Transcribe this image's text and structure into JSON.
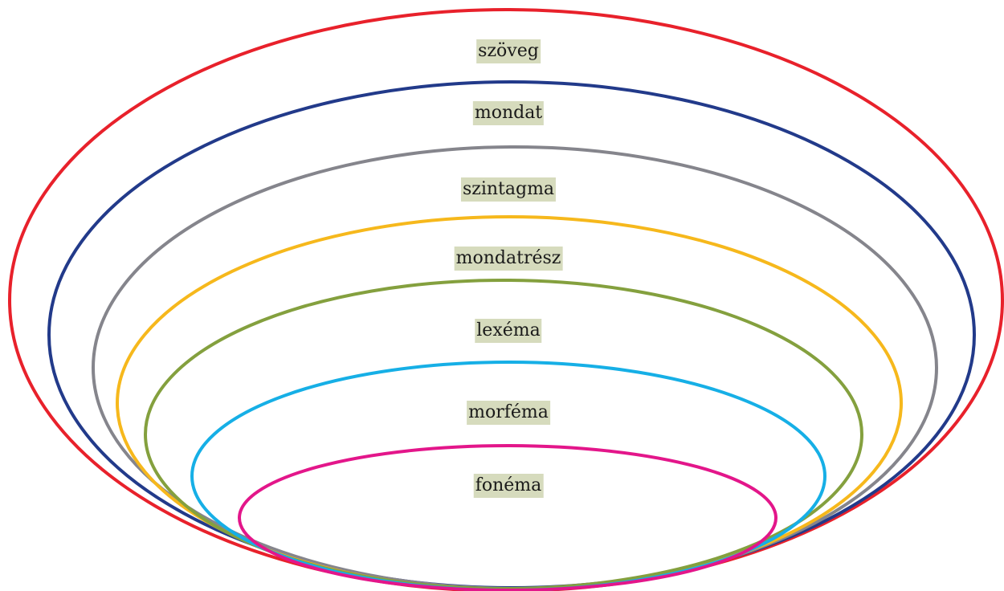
{
  "levels": [
    {
      "id": "szoveg",
      "label": "szöveg",
      "color": "#e8212b"
    },
    {
      "id": "mondat",
      "label": "mondat",
      "color": "#223a8a"
    },
    {
      "id": "szintagma",
      "label": "szintagma",
      "color": "#85858c"
    },
    {
      "id": "mondatresz",
      "label": "mondatrész",
      "color": "#f6b81c"
    },
    {
      "id": "lexema",
      "label": "lexéma",
      "color": "#84a03e"
    },
    {
      "id": "morfema",
      "label": "morféma",
      "color": "#16afe6"
    },
    {
      "id": "fonema",
      "label": "fonéma",
      "color": "#e3168a"
    }
  ],
  "label_background": "#d6dbbd"
}
